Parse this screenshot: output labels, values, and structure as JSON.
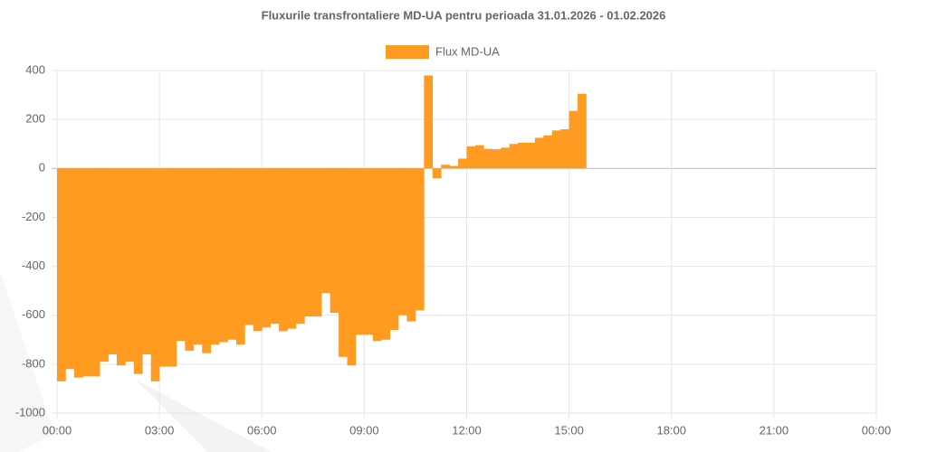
{
  "chart_data": {
    "type": "bar",
    "title": "Fluxurile transfrontaliere MD-UA pentru perioada 31.01.2026 - 01.02.2026",
    "series": [
      {
        "name": "Flux MD-UA",
        "color": "#ff9b21",
        "values": [
          -870,
          -820,
          -855,
          -850,
          -850,
          -790,
          -760,
          -805,
          -790,
          -840,
          -760,
          -870,
          -810,
          -810,
          -705,
          -745,
          -720,
          -755,
          -720,
          -710,
          -700,
          -720,
          -640,
          -665,
          -650,
          -635,
          -665,
          -655,
          -635,
          -605,
          -605,
          -510,
          -590,
          -770,
          -805,
          -680,
          -680,
          -705,
          -700,
          -660,
          -600,
          -625,
          -580,
          380,
          -40,
          15,
          10,
          40,
          90,
          95,
          80,
          78,
          85,
          100,
          105,
          105,
          125,
          135,
          155,
          160,
          235,
          305
        ]
      }
    ],
    "x": [
      0,
      15,
      30,
      45,
      60,
      75,
      90,
      105,
      120,
      135,
      150,
      165,
      180,
      195,
      210,
      225,
      240,
      255,
      270,
      285,
      300,
      315,
      330,
      345,
      360,
      375,
      390,
      405,
      420,
      435,
      450,
      465,
      480,
      495,
      510,
      525,
      540,
      555,
      570,
      585,
      600,
      615,
      630,
      645,
      660,
      675,
      690,
      705,
      720,
      735,
      750,
      765,
      780,
      795,
      810,
      825,
      840,
      855,
      870,
      885,
      900,
      915
    ],
    "xlim": [
      0,
      1440
    ],
    "xticks": [
      {
        "value": 0,
        "label": "00:00"
      },
      {
        "value": 180,
        "label": "03:00"
      },
      {
        "value": 360,
        "label": "06:00"
      },
      {
        "value": 540,
        "label": "09:00"
      },
      {
        "value": 720,
        "label": "12:00"
      },
      {
        "value": 900,
        "label": "15:00"
      },
      {
        "value": 1080,
        "label": "18:00"
      },
      {
        "value": 1260,
        "label": "21:00"
      },
      {
        "value": 1440,
        "label": "00:00"
      }
    ],
    "ylim": [
      -1000,
      400
    ],
    "yticks": [
      -1000,
      -800,
      -600,
      -400,
      -200,
      0,
      200,
      400
    ],
    "grid": true,
    "legend": "top"
  }
}
